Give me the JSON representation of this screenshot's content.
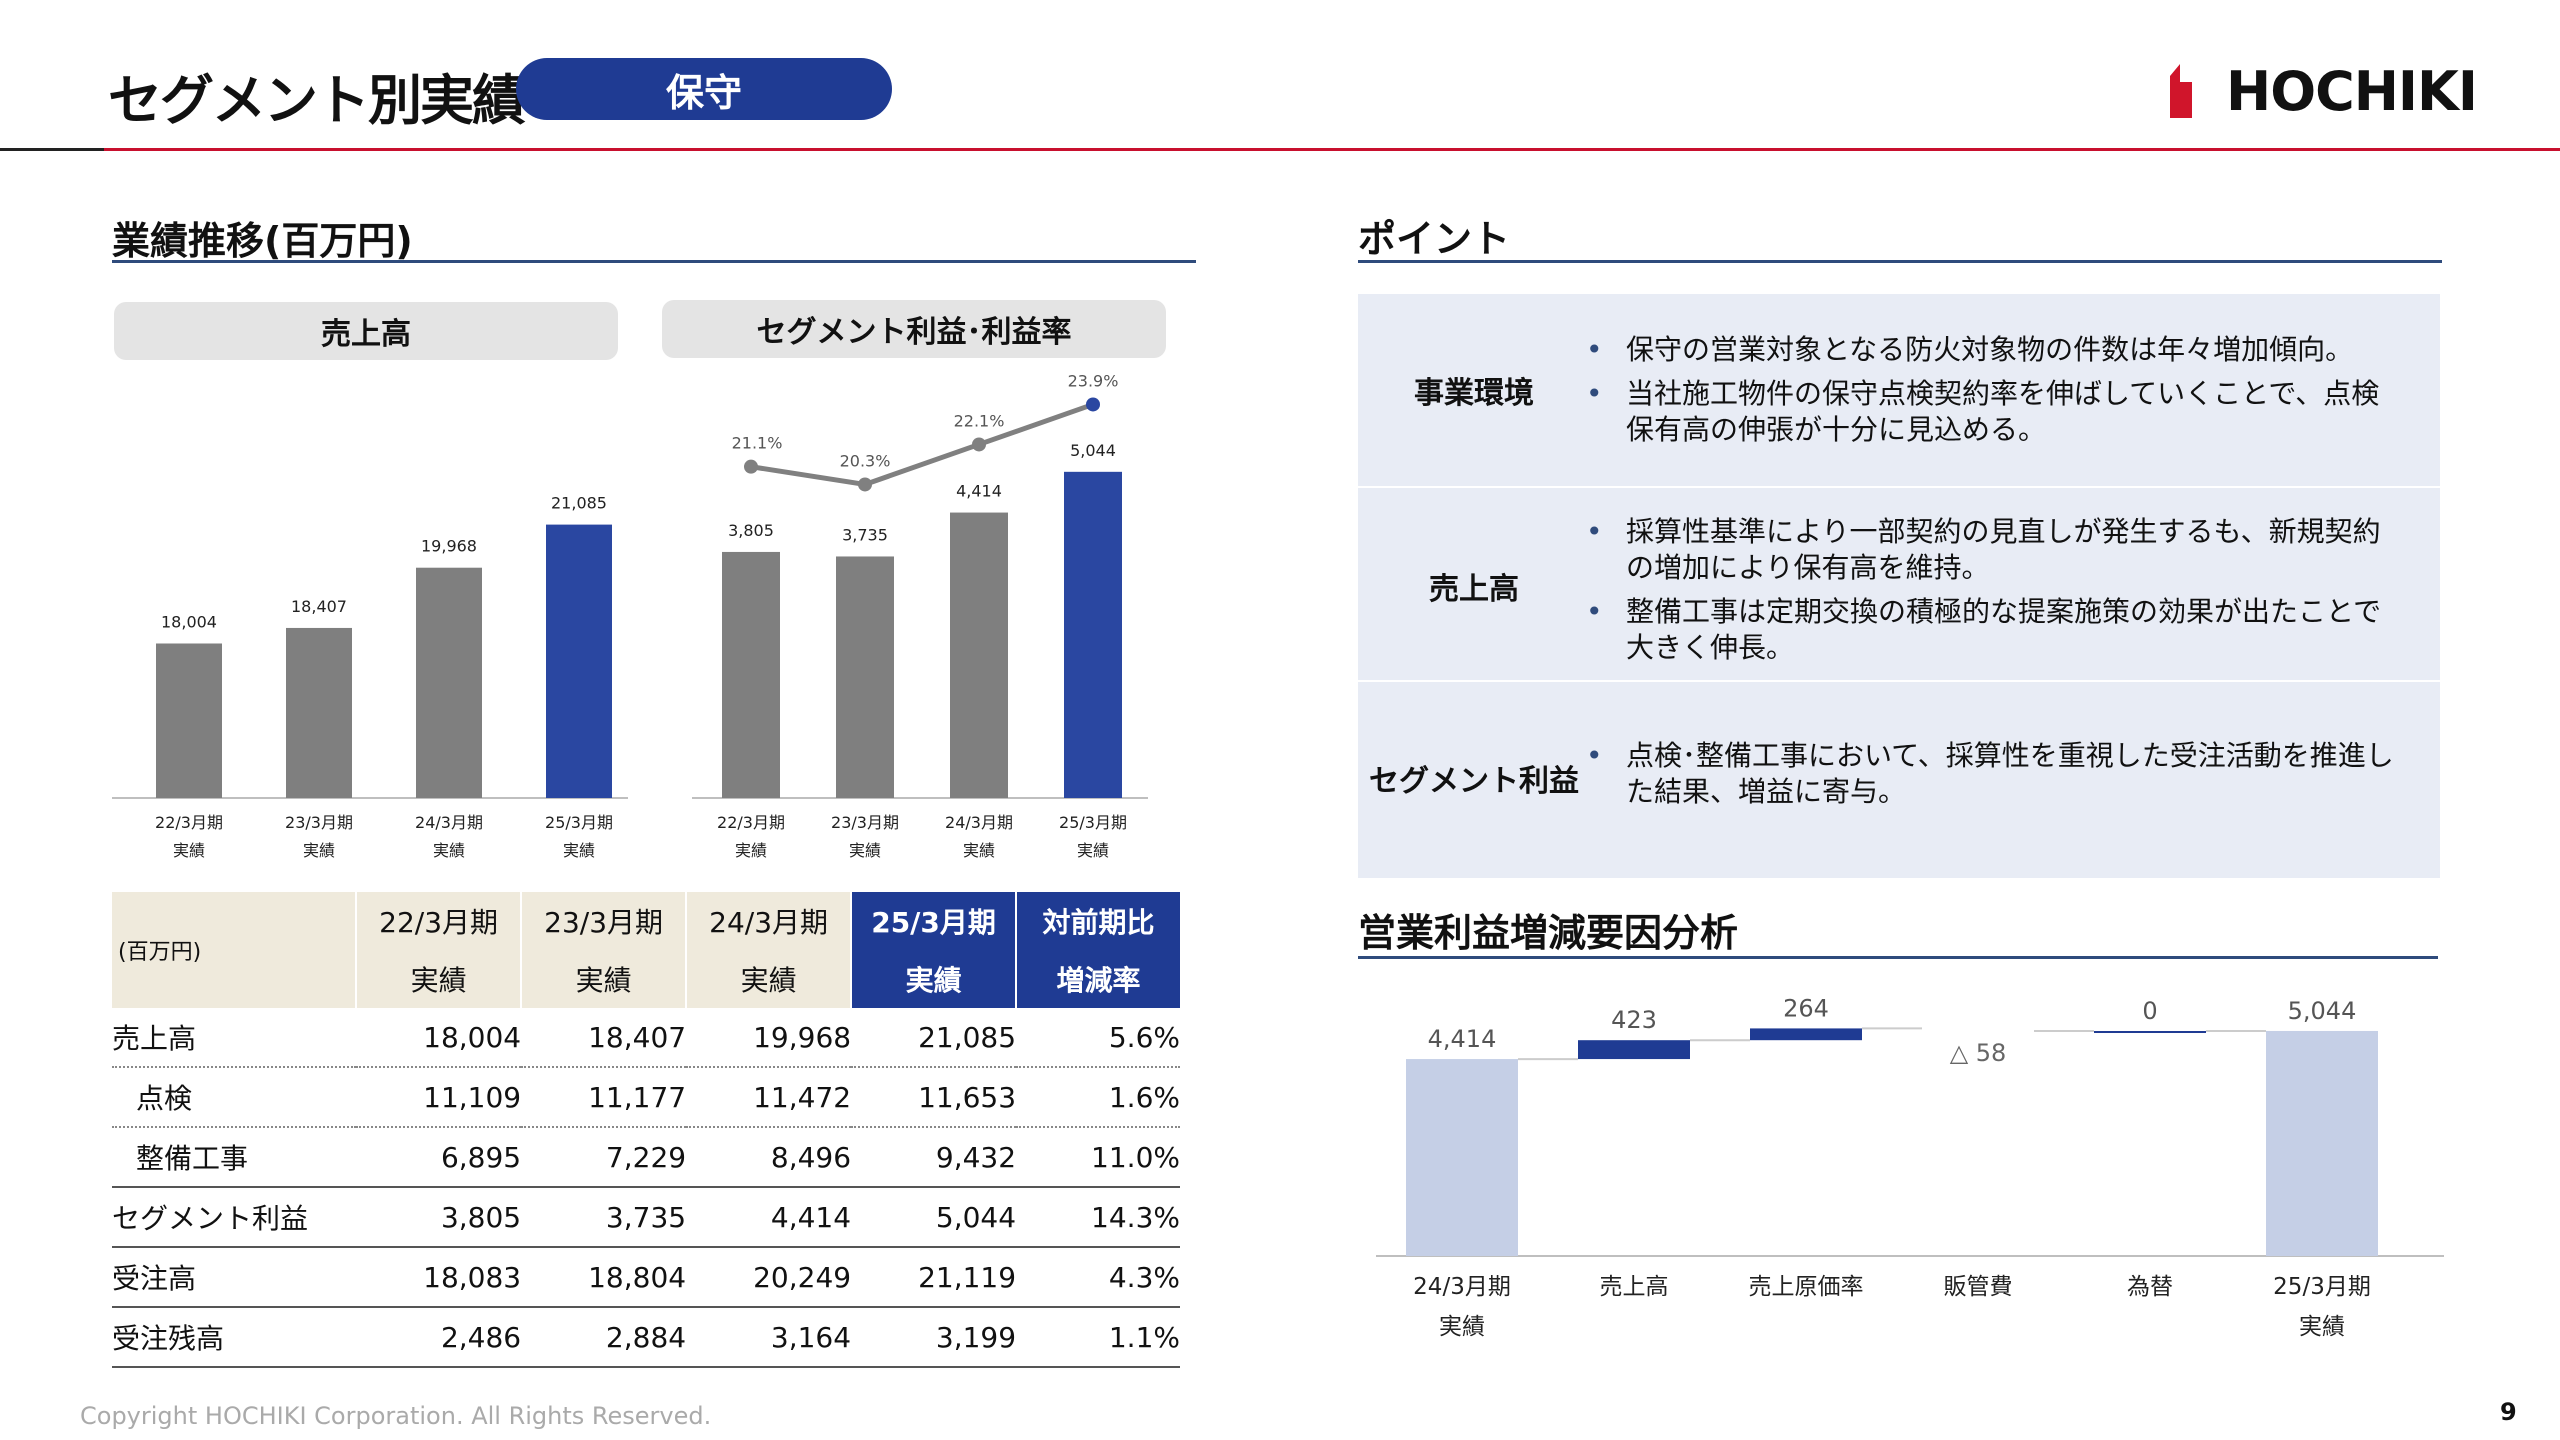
{
  "header": {
    "title": "セグメント別実績",
    "badge": "保守",
    "logo_text": "HOCHIKI"
  },
  "left": {
    "section_title": "業績推移(百万円)",
    "sales_header": "売上高",
    "profit_header": "セグメント利益･利益率"
  },
  "table": {
    "unit": "(百万円)",
    "columns": [
      {
        "l1": "22/3月期",
        "l2": "実績"
      },
      {
        "l1": "23/3月期",
        "l2": "実績"
      },
      {
        "l1": "24/3月期",
        "l2": "実績"
      },
      {
        "l1": "25/3月期",
        "l2": "実績"
      },
      {
        "l1": "対前期比",
        "l2": "増減率"
      }
    ],
    "rows": [
      {
        "label": "売上高",
        "values": [
          "18,004",
          "18,407",
          "19,968",
          "21,085",
          "5.6%"
        ]
      },
      {
        "label": "点検",
        "values": [
          "11,109",
          "11,177",
          "11,472",
          "11,653",
          "1.6%"
        ]
      },
      {
        "label": "整備工事",
        "values": [
          "6,895",
          "7,229",
          "8,496",
          "9,432",
          "11.0%"
        ]
      },
      {
        "label": "セグメント利益",
        "values": [
          "3,805",
          "3,735",
          "4,414",
          "5,044",
          "14.3%"
        ]
      },
      {
        "label": "受注高",
        "values": [
          "18,083",
          "18,804",
          "20,249",
          "21,119",
          "4.3%"
        ]
      },
      {
        "label": "受注残高",
        "values": [
          "2,486",
          "2,884",
          "3,164",
          "3,199",
          "1.1%"
        ]
      }
    ]
  },
  "points": {
    "section_title": "ポイント",
    "rows": [
      {
        "label": "事業環境",
        "items": [
          "保守の営業対象となる防火対象物の件数は年々増加傾向。",
          "当社施工物件の保守点検契約率を伸ばしていくことで、点検保有高の伸張が十分に見込める。"
        ]
      },
      {
        "label": "売上高",
        "items": [
          "採算性基準により一部契約の見直しが発生するも、新規契約の増加により保有高を維持。",
          "整備工事は定期交換の積極的な提案施策の効果が出たことで大きく伸長。"
        ]
      },
      {
        "label": "セグメント利益",
        "items": [
          "点検･整備工事において、採算性を重視した受注活動を推進した結果、増益に寄与。"
        ]
      }
    ]
  },
  "waterfall_section_title": "営業利益増減要因分析",
  "chart_data": [
    {
      "type": "bar",
      "title": "売上高",
      "categories": [
        [
          "22/3月期",
          "実績"
        ],
        [
          "23/3月期",
          "実績"
        ],
        [
          "24/3月期",
          "実績"
        ],
        [
          "25/3月期",
          "実績"
        ]
      ],
      "values": [
        18004,
        18407,
        19968,
        21085
      ],
      "labels": [
        "18,004",
        "18,407",
        "19,968",
        "21,085"
      ],
      "ylim": [
        14000,
        22500
      ],
      "colors": [
        "#7f7f7f",
        "#7f7f7f",
        "#7f7f7f",
        "#2a47a1"
      ]
    },
    {
      "type": "bar+line",
      "title": "セグメント利益･利益率",
      "categories": [
        [
          "22/3月期",
          "実績"
        ],
        [
          "23/3月期",
          "実績"
        ],
        [
          "24/3月期",
          "実績"
        ],
        [
          "25/3月期",
          "実績"
        ]
      ],
      "series": [
        {
          "name": "セグメント利益",
          "values": [
            3805,
            3735,
            4414,
            5044
          ],
          "labels": [
            "3,805",
            "3,735",
            "4,414",
            "5,044"
          ]
        },
        {
          "name": "利益率",
          "values": [
            21.1,
            20.3,
            22.1,
            23.9
          ],
          "labels": [
            "21.1%",
            "20.3%",
            "22.1%",
            "23.9%"
          ]
        }
      ],
      "ylim_bar": [
        0,
        6000
      ],
      "ylim_line": [
        16,
        25
      ],
      "colors": [
        "#7f7f7f",
        "#7f7f7f",
        "#7f7f7f",
        "#2a47a1"
      ],
      "line_color": "#808080",
      "last_point_color": "#2a47a1"
    },
    {
      "type": "waterfall",
      "title": "営業利益増減要因分析",
      "categories": [
        [
          "24/3月期",
          "実績"
        ],
        [
          "売上高"
        ],
        [
          "売上原価率"
        ],
        [
          "販管費"
        ],
        [
          "為替"
        ],
        [
          "25/3月期",
          "実績"
        ]
      ],
      "values": [
        4414,
        423,
        264,
        -58,
        0,
        5044
      ],
      "labels": [
        "4,414",
        "423",
        "264",
        "△ 58",
        "0",
        "5,044"
      ],
      "kinds": [
        "total",
        "delta",
        "delta",
        "delta",
        "delta",
        "total"
      ],
      "ylim": [
        0,
        5200
      ],
      "total_color": "#c5cfe6",
      "increase_color": "#1f3b93",
      "decrease_color": "#ffffff"
    }
  ],
  "footer": {
    "copyright": "Copyright HOCHIKI Corporation. All Rights Reserved.",
    "page": "9"
  }
}
